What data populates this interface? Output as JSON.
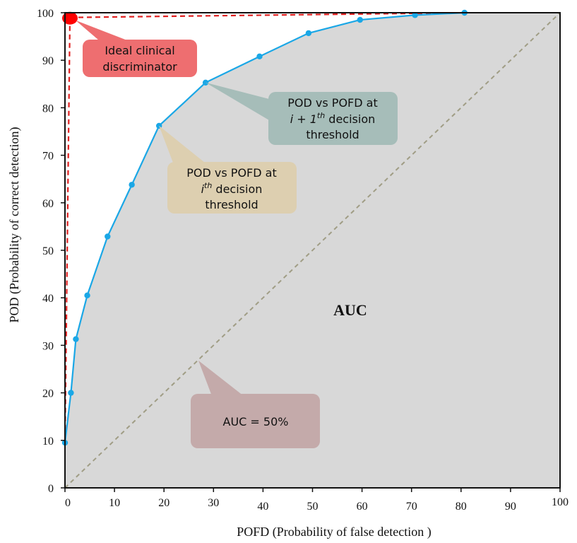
{
  "chart_data": {
    "type": "line",
    "xlabel": "POFD (Probability of false detection )",
    "ylabel": "POD (Probability of correct detection)",
    "xlim": [
      0,
      100
    ],
    "ylim": [
      0,
      100
    ],
    "x_ticks": [
      "0",
      "10",
      "20",
      "30",
      "40",
      "50",
      "60",
      "70",
      "80",
      "90",
      "100"
    ],
    "y_ticks": [
      "0",
      "10",
      "20",
      "30",
      "40",
      "50",
      "60",
      "70",
      "80",
      "90",
      "100"
    ],
    "grid": false,
    "shaded_region": "area under ROC curve",
    "area_label": "AUC",
    "series": [
      {
        "points": [
          {
            "x": 0,
            "y": 9.5
          },
          {
            "x": 1.2,
            "y": 20
          },
          {
            "x": 2.2,
            "y": 31.3
          },
          {
            "x": 4.5,
            "y": 40.5
          },
          {
            "x": 8.6,
            "y": 52.9
          },
          {
            "x": 13.5,
            "y": 63.8
          },
          {
            "x": 19,
            "y": 76.2
          },
          {
            "x": 28.4,
            "y": 85.3
          },
          {
            "x": 39.3,
            "y": 90.8
          },
          {
            "x": 49.2,
            "y": 95.7
          },
          {
            "x": 59.6,
            "y": 98.5
          },
          {
            "x": 70.7,
            "y": 99.5
          },
          {
            "x": 80.7,
            "y": 100
          }
        ],
        "color": "#1aa7e6"
      }
    ],
    "diagonal": {
      "from": [
        0,
        0
      ],
      "to": [
        100,
        100
      ],
      "color": "#a09d85"
    },
    "ideal_point": {
      "x": 1,
      "y": 99,
      "color": "#ff0000"
    },
    "ideal_lines": {
      "to_curve_start": [
        0,
        9.5
      ],
      "to_curve_end": [
        80.7,
        100
      ],
      "color": "#e02020"
    },
    "annotations": [
      {
        "lines": [
          "Ideal clinical",
          "discriminator"
        ],
        "color": "#ee6e70",
        "target": "ideal"
      },
      {
        "lines": [
          "POD vs POFD at",
          "i + 1",
          "th",
          " decision",
          "threshold"
        ],
        "color": "#a6bdb9",
        "target": "point_i_plus_1"
      },
      {
        "lines": [
          "POD vs POFD at",
          "i",
          "th",
          " decision",
          "threshold"
        ],
        "color": "#ddcfb0",
        "target": "point_i"
      },
      {
        "lines": [
          "AUC = 50%"
        ],
        "color": "#c4aaaa",
        "target": "diagonal"
      }
    ]
  }
}
